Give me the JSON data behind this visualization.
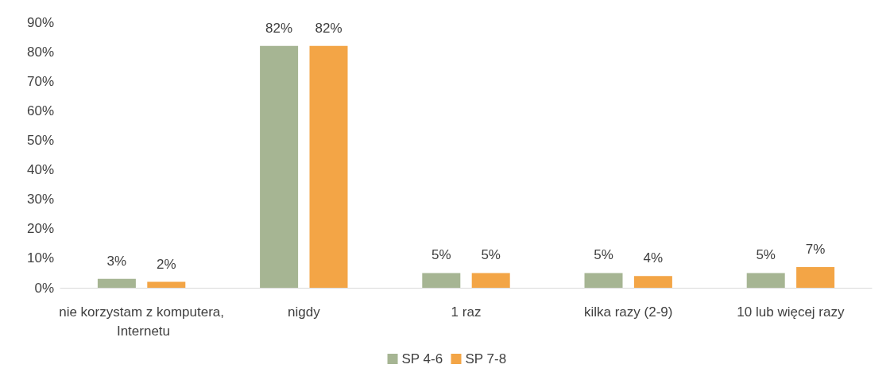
{
  "chart_data": {
    "type": "bar",
    "categories": [
      "nie korzystam z komputera, Internetu",
      "nigdy",
      "1 raz",
      "kilka razy (2-9)",
      "10 lub więcej razy"
    ],
    "series": [
      {
        "name": "SP 4-6",
        "color": "#a6b593",
        "values": [
          3,
          82,
          5,
          5,
          5
        ],
        "value_labels": [
          "3%",
          "82%",
          "5%",
          "5%",
          "5%"
        ]
      },
      {
        "name": "SP 7-8",
        "color": "#f3a546",
        "values": [
          2,
          82,
          5,
          4,
          7
        ],
        "value_labels": [
          "2%",
          "82%",
          "5%",
          "4%",
          "7%"
        ]
      }
    ],
    "ylim": [
      0,
      90
    ],
    "yticks": [
      {
        "value": 0,
        "label": "0%"
      },
      {
        "value": 10,
        "label": "10%"
      },
      {
        "value": 20,
        "label": "20%"
      },
      {
        "value": 30,
        "label": "30%"
      },
      {
        "value": 40,
        "label": "40%"
      },
      {
        "value": 50,
        "label": "50%"
      },
      {
        "value": 60,
        "label": "60%"
      },
      {
        "value": 70,
        "label": "70%"
      },
      {
        "value": 80,
        "label": "80%"
      },
      {
        "value": 90,
        "label": "90%"
      }
    ],
    "grid": false,
    "legend": "bottom"
  }
}
